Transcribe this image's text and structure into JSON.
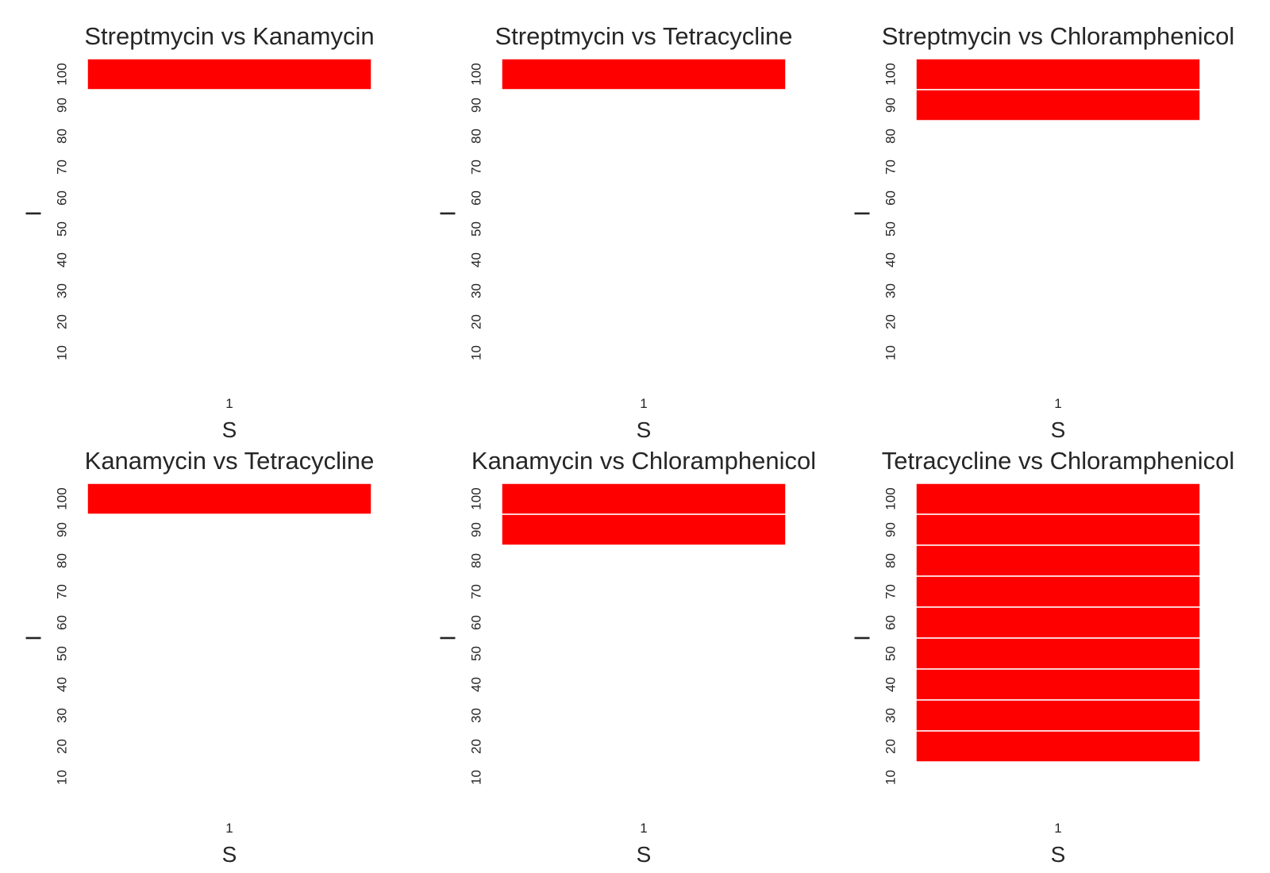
{
  "chart_data": [
    {
      "type": "heatmap",
      "title": "Streptmycin vs Kanamycin",
      "xlabel": "S",
      "ylabel": "I",
      "x_categories": [
        "1"
      ],
      "y_categories": [
        "100",
        "90",
        "80",
        "70",
        "60",
        "50",
        "40",
        "30",
        "20",
        "10"
      ],
      "filled_cells": [
        "100"
      ],
      "cell_color": "#ff0000",
      "grid": false
    },
    {
      "type": "heatmap",
      "title": "Streptmycin vs Tetracycline",
      "xlabel": "S",
      "ylabel": "I",
      "x_categories": [
        "1"
      ],
      "y_categories": [
        "100",
        "90",
        "80",
        "70",
        "60",
        "50",
        "40",
        "30",
        "20",
        "10"
      ],
      "filled_cells": [
        "100"
      ],
      "cell_color": "#ff0000",
      "grid": false
    },
    {
      "type": "heatmap",
      "title": "Streptmycin vs Chloramphenicol",
      "xlabel": "S",
      "ylabel": "I",
      "x_categories": [
        "1"
      ],
      "y_categories": [
        "100",
        "90",
        "80",
        "70",
        "60",
        "50",
        "40",
        "30",
        "20",
        "10"
      ],
      "filled_cells": [
        "100",
        "90"
      ],
      "cell_color": "#ff0000",
      "grid": false
    },
    {
      "type": "heatmap",
      "title": "Kanamycin vs Tetracycline",
      "xlabel": "S",
      "ylabel": "I",
      "x_categories": [
        "1"
      ],
      "y_categories": [
        "100",
        "90",
        "80",
        "70",
        "60",
        "50",
        "40",
        "30",
        "20",
        "10"
      ],
      "filled_cells": [
        "100"
      ],
      "cell_color": "#ff0000",
      "grid": false
    },
    {
      "type": "heatmap",
      "title": "Kanamycin vs Chloramphenicol",
      "xlabel": "S",
      "ylabel": "I",
      "x_categories": [
        "1"
      ],
      "y_categories": [
        "100",
        "90",
        "80",
        "70",
        "60",
        "50",
        "40",
        "30",
        "20",
        "10"
      ],
      "filled_cells": [
        "100",
        "90"
      ],
      "cell_color": "#ff0000",
      "grid": false
    },
    {
      "type": "heatmap",
      "title": "Tetracycline vs Chloramphenicol",
      "xlabel": "S",
      "ylabel": "I",
      "x_categories": [
        "1"
      ],
      "y_categories": [
        "100",
        "90",
        "80",
        "70",
        "60",
        "50",
        "40",
        "30",
        "20",
        "10"
      ],
      "filled_cells": [
        "100",
        "90",
        "80",
        "70",
        "60",
        "50",
        "40",
        "30",
        "20"
      ],
      "cell_color": "#ff0000",
      "grid": false
    }
  ]
}
